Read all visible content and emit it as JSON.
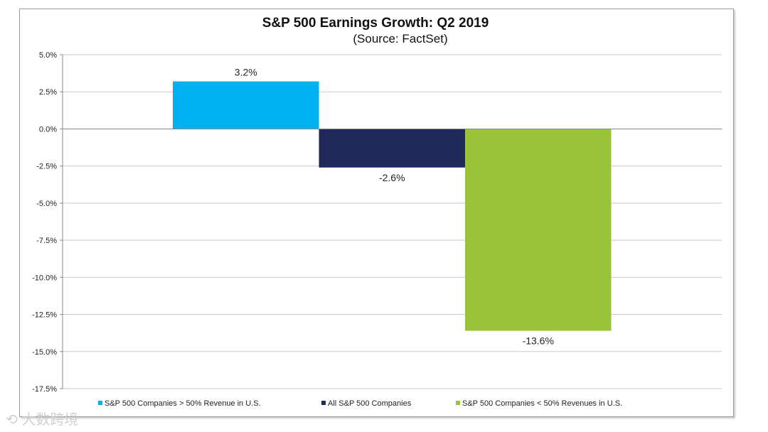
{
  "chart_data": {
    "type": "bar",
    "title": "S&P 500 Earnings Growth: Q2 2019",
    "subtitle": "(Source: FactSet)",
    "xlabel": "",
    "ylabel": "",
    "ylim": [
      -17.5,
      5.0
    ],
    "yticks": [
      "5.0%",
      "2.5%",
      "0.0%",
      "-2.5%",
      "-5.0%",
      "-7.5%",
      "-10.0%",
      "-12.5%",
      "-15.0%",
      "-17.5%"
    ],
    "grid": true,
    "legend_position": "bottom",
    "series": [
      {
        "name": "S&P 500 Companies > 50% Revenue in U.S.",
        "value": 3.2,
        "label": "3.2%",
        "color": "#00b0f0"
      },
      {
        "name": "All S&P 500 Companies",
        "value": -2.6,
        "label": "-2.6%",
        "color": "#1f2a5a"
      },
      {
        "name": "S&P 500 Companies < 50% Revenues in U.S.",
        "value": -13.6,
        "label": "-13.6%",
        "color": "#9ac33c"
      }
    ]
  },
  "watermark": "大数跨境"
}
